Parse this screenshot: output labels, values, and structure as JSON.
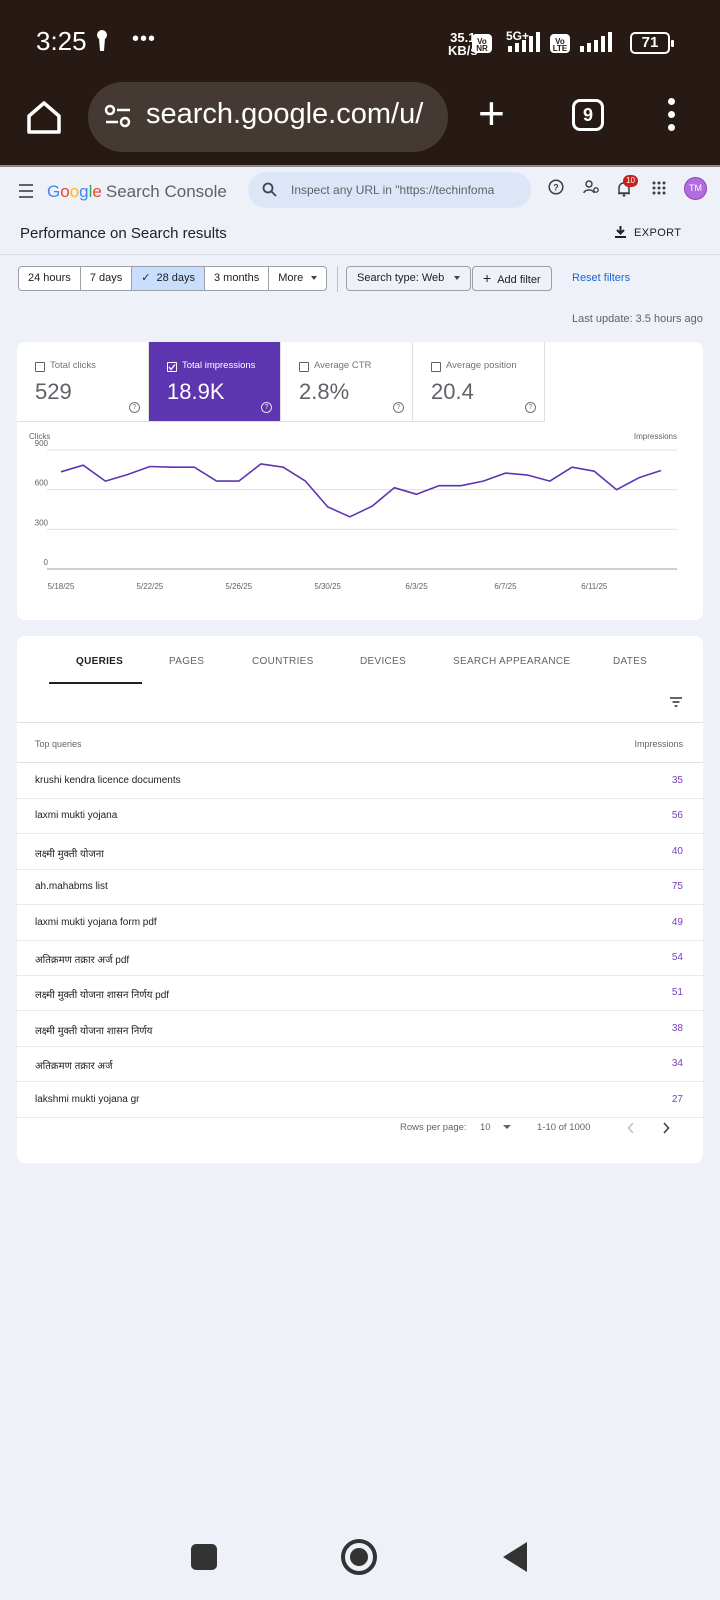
{
  "status_bar": {
    "time": "3:25",
    "more": "•••",
    "net_speed_value": "35.1",
    "net_speed_unit": "KB/s",
    "sim1_label": "Vo NR",
    "network": "5G+",
    "sim2_label": "Vo LTE",
    "battery": "71"
  },
  "browser": {
    "url": "search.google.com/u/",
    "tab_count": "9"
  },
  "gsc": {
    "logo_google": [
      "G",
      "o",
      "o",
      "g",
      "l",
      "e"
    ],
    "logo_product": "Search Console",
    "search_placeholder": "Inspect any URL in \"https://techinfoma",
    "notification_count": "10",
    "avatar_initials": "TM",
    "page_title": "Performance on Search results",
    "export_label": "EXPORT"
  },
  "filters": {
    "date_options": [
      "24 hours",
      "7 days",
      "28 days",
      "3 months",
      "More"
    ],
    "selected_date": "28 days",
    "search_type": "Search type: Web",
    "add_filter": "Add filter",
    "reset": "Reset filters",
    "last_update": "Last update: 3.5 hours ago"
  },
  "metrics": [
    {
      "label": "Total clicks",
      "value": "529",
      "checked": false
    },
    {
      "label": "Total impressions",
      "value": "18.9K",
      "checked": true
    },
    {
      "label": "Average CTR",
      "value": "2.8%",
      "checked": false
    },
    {
      "label": "Average position",
      "value": "20.4",
      "checked": false
    }
  ],
  "chart_data": {
    "type": "line",
    "left_axis_label": "Clicks",
    "right_axis_label": "Impressions",
    "yticks": [
      0,
      300,
      600,
      900
    ],
    "ylim": [
      0,
      900
    ],
    "grid": true,
    "x_ticks": [
      "5/18/25",
      "5/22/25",
      "5/26/25",
      "5/30/25",
      "6/3/25",
      "6/7/25",
      "6/11/25"
    ],
    "x": [
      "5/18/25",
      "5/19/25",
      "5/20/25",
      "5/21/25",
      "5/22/25",
      "5/23/25",
      "5/24/25",
      "5/25/25",
      "5/26/25",
      "5/27/25",
      "5/28/25",
      "5/29/25",
      "5/30/25",
      "5/31/25",
      "6/1/25",
      "6/2/25",
      "6/3/25",
      "6/4/25",
      "6/5/25",
      "6/6/25",
      "6/7/25",
      "6/8/25",
      "6/9/25",
      "6/10/25",
      "6/11/25",
      "6/12/25",
      "6/13/25",
      "6/14/25"
    ],
    "series": [
      {
        "color": "#5e35b1",
        "values": [
          735,
          785,
          665,
          715,
          775,
          770,
          770,
          665,
          665,
          795,
          770,
          665,
          470,
          395,
          475,
          615,
          565,
          630,
          630,
          665,
          725,
          710,
          665,
          770,
          740,
          600,
          690,
          745
        ]
      }
    ]
  },
  "table": {
    "tabs": [
      "QUERIES",
      "PAGES",
      "COUNTRIES",
      "DEVICES",
      "SEARCH APPEARANCE",
      "DATES"
    ],
    "active_tab": "QUERIES",
    "col_query": "Top queries",
    "col_metric": "Impressions",
    "rows": [
      {
        "query": "krushi kendra licence documents",
        "impressions": "35"
      },
      {
        "query": "laxmi mukti yojana",
        "impressions": "56"
      },
      {
        "query": "लक्ष्मी मुक्ती योजना",
        "impressions": "40"
      },
      {
        "query": "ah.mahabms list",
        "impressions": "75"
      },
      {
        "query": "laxmi mukti yojana form pdf",
        "impressions": "49"
      },
      {
        "query": "अतिक्रमण तक्रार अर्ज pdf",
        "impressions": "54"
      },
      {
        "query": "लक्ष्मी मुक्ती योजना शासन निर्णय pdf",
        "impressions": "51"
      },
      {
        "query": "लक्ष्मी मुक्ती योजना शासन निर्णय",
        "impressions": "38"
      },
      {
        "query": "अतिक्रमण तक्रार अर्ज",
        "impressions": "34"
      },
      {
        "query": "lakshmi mukti yojana gr",
        "impressions": "27"
      }
    ],
    "rows_per_page_label": "Rows per page:",
    "rows_per_page": "10",
    "range": "1-10 of 1000"
  }
}
